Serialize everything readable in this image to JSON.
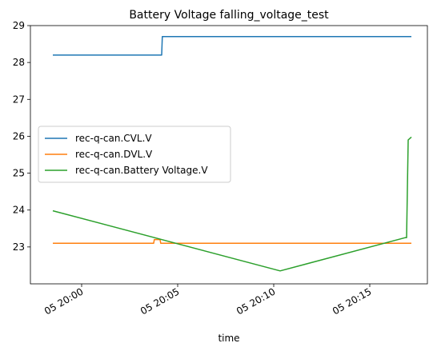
{
  "chart_data": {
    "type": "line",
    "title": "Battery Voltage falling_voltage_test",
    "xlabel": "time",
    "ylabel": "",
    "xlim": [
      "05 19:57:20",
      "05 20:18:00"
    ],
    "ylim": [
      22.0,
      29.0
    ],
    "x_ticks": [
      {
        "value": "05 20:00",
        "minutes": 0
      },
      {
        "value": "05 20:05",
        "minutes": 5
      },
      {
        "value": "05 20:10",
        "minutes": 10
      },
      {
        "value": "05 20:15",
        "minutes": 15
      }
    ],
    "y_ticks": [
      23,
      24,
      25,
      26,
      27,
      28,
      29
    ],
    "legend_position": "center-left",
    "series": [
      {
        "name": "rec-q-can.CVL.V",
        "color": "#1f77b4",
        "points": [
          {
            "x": "05 19:58:30",
            "y": 28.2
          },
          {
            "x": "05 20:04:10",
            "y": 28.2
          },
          {
            "x": "05 20:04:12",
            "y": 28.7
          },
          {
            "x": "05 20:17:10",
            "y": 28.7
          }
        ]
      },
      {
        "name": "rec-q-can.DVL.V",
        "color": "#ff7f0e",
        "points": [
          {
            "x": "05 19:58:30",
            "y": 23.1
          },
          {
            "x": "05 20:03:45",
            "y": 23.1
          },
          {
            "x": "05 20:03:47",
            "y": 23.2
          },
          {
            "x": "05 20:04:05",
            "y": 23.2
          },
          {
            "x": "05 20:04:07",
            "y": 23.1
          },
          {
            "x": "05 20:17:10",
            "y": 23.1
          }
        ]
      },
      {
        "name": "rec-q-can.Battery Voltage.V",
        "color": "#2ca02c",
        "points": [
          {
            "x": "05 19:58:30",
            "y": 23.98
          },
          {
            "x": "05 20:10:20",
            "y": 22.35
          },
          {
            "x": "05 20:16:50",
            "y": 23.25
          },
          {
            "x": "05 20:16:55",
            "y": 23.25
          },
          {
            "x": "05 20:17:00",
            "y": 25.9
          },
          {
            "x": "05 20:17:10",
            "y": 25.98
          }
        ]
      }
    ]
  }
}
